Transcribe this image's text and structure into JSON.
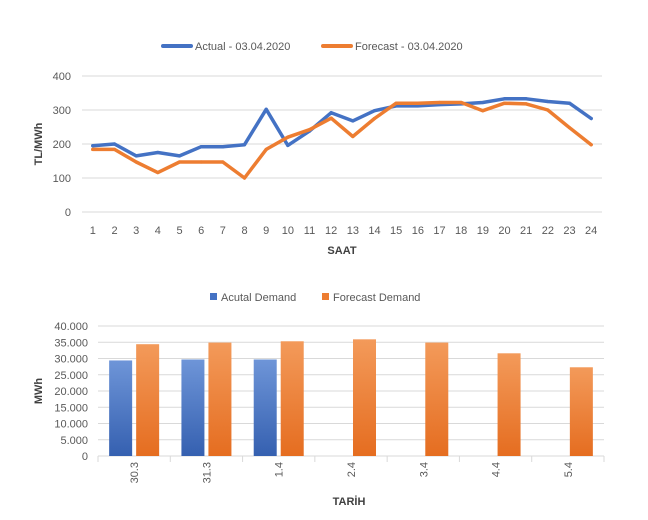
{
  "chart_data": [
    {
      "type": "line",
      "title": "",
      "xlabel": "SAAT",
      "ylabel": "TL/MWh",
      "ylim": [
        0,
        400
      ],
      "yticks": [
        0,
        100,
        200,
        300,
        400
      ],
      "grid": true,
      "legend": "top-center",
      "x": [
        1,
        2,
        3,
        4,
        5,
        6,
        7,
        8,
        9,
        10,
        11,
        12,
        13,
        14,
        15,
        16,
        17,
        18,
        19,
        20,
        21,
        22,
        23,
        24
      ],
      "series": [
        {
          "name": "Actual - 03.04.2020",
          "color": "#4472c4",
          "values": [
            195,
            200,
            165,
            175,
            165,
            192,
            192,
            198,
            302,
            196,
            238,
            292,
            268,
            298,
            312,
            312,
            316,
            318,
            322,
            333,
            333,
            325,
            320,
            275
          ]
        },
        {
          "name": "Forecast - 03.04.2020",
          "color": "#ed7d31",
          "values": [
            184,
            184,
            147,
            116,
            147,
            147,
            147,
            100,
            184,
            220,
            242,
            276,
            222,
            275,
            320,
            320,
            322,
            322,
            298,
            320,
            318,
            300,
            248,
            198
          ]
        }
      ]
    },
    {
      "type": "bar",
      "title": "",
      "xlabel": "TARİH",
      "ylabel": "MWh",
      "ylim": [
        0,
        40000
      ],
      "yticks": [
        "0",
        "5.000",
        "10.000",
        "15.000",
        "20.000",
        "25.000",
        "30.000",
        "35.000",
        "40.000"
      ],
      "grid": true,
      "legend": "top-center",
      "categories": [
        "30.3",
        "31.3",
        "1.4",
        "2.4",
        "3.4",
        "4.4",
        "5.4"
      ],
      "series": [
        {
          "name": "Acutal Demand",
          "color": "#4472c4",
          "values": [
            29400,
            29700,
            29700,
            null,
            null,
            null,
            null
          ]
        },
        {
          "name": "Forecast Demand",
          "color": "#ed7d31",
          "values": [
            34400,
            34900,
            35300,
            35900,
            34900,
            31600,
            27300
          ]
        }
      ]
    }
  ]
}
